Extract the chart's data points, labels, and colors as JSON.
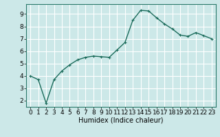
{
  "x": [
    0,
    1,
    2,
    3,
    4,
    5,
    6,
    7,
    8,
    9,
    10,
    11,
    12,
    13,
    14,
    15,
    16,
    17,
    18,
    19,
    20,
    21,
    22,
    23
  ],
  "y": [
    4.0,
    3.7,
    1.8,
    3.7,
    4.4,
    4.9,
    5.3,
    5.5,
    5.6,
    5.55,
    5.5,
    6.1,
    6.7,
    8.5,
    9.3,
    9.25,
    8.7,
    8.2,
    7.8,
    7.3,
    7.2,
    7.5,
    7.25,
    7.0
  ],
  "line_color": "#1a6b5a",
  "marker": "+",
  "marker_size": 3,
  "bg_color": "#cce8e8",
  "grid_color": "#ffffff",
  "xlabel": "Humidex (Indice chaleur)",
  "xlim": [
    -0.5,
    23.5
  ],
  "ylim": [
    1.5,
    9.8
  ],
  "yticks": [
    2,
    3,
    4,
    5,
    6,
    7,
    8,
    9
  ],
  "xticks": [
    0,
    1,
    2,
    3,
    4,
    5,
    6,
    7,
    8,
    9,
    10,
    11,
    12,
    13,
    14,
    15,
    16,
    17,
    18,
    19,
    20,
    21,
    22,
    23
  ],
  "xlabel_fontsize": 7,
  "tick_fontsize": 6.5,
  "line_width": 1.0,
  "fig_width": 3.2,
  "fig_height": 2.0,
  "dpi": 100
}
